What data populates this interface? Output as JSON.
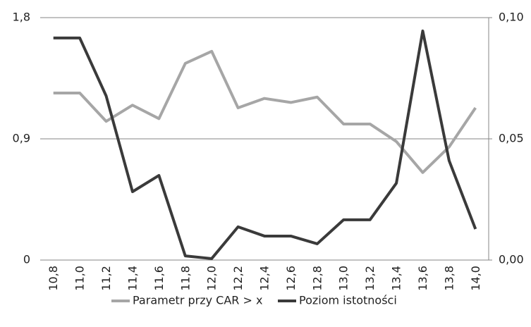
{
  "chart_data": {
    "type": "line",
    "categories": [
      "10,8",
      "11,0",
      "11,2",
      "11,4",
      "11,6",
      "11,8",
      "12,0",
      "12,2",
      "12,4",
      "12,6",
      "12,8",
      "13,0",
      "13,2",
      "13,4",
      "13,6",
      "13,8",
      "14,0"
    ],
    "series": [
      {
        "name": "Parametr przy CAR > x",
        "color": "#a6a6a6",
        "values": [
          1.24,
          1.24,
          1.03,
          1.15,
          1.05,
          1.46,
          1.55,
          1.13,
          1.2,
          1.17,
          1.21,
          1.01,
          1.01,
          0.88,
          0.65,
          0.84,
          1.13
        ]
      },
      {
        "name": "Poziom istotności",
        "color": "#3a3a3a",
        "axis": "y2",
        "values": [
          0.0916,
          0.0916,
          0.0677,
          0.0282,
          0.0349,
          0.0017,
          0.0006,
          0.0137,
          0.0099,
          0.0099,
          0.0067,
          0.0166,
          0.0166,
          0.0317,
          0.0945,
          0.041,
          0.0128
        ]
      }
    ],
    "ylim": [
      0,
      1.8
    ],
    "yticks": [
      0,
      {
        "value": 0.9,
        "label": "0,9"
      },
      {
        "value": 1.8,
        "label": "1,8"
      }
    ],
    "y2lim": [
      0,
      0.1
    ],
    "y2ticks": [
      {
        "value": 0,
        "label": "0,00"
      },
      {
        "value": 0.05,
        "label": "0,05"
      },
      {
        "value": 0.1,
        "label": "0,10"
      }
    ],
    "grid": true,
    "legend": "bottom"
  }
}
